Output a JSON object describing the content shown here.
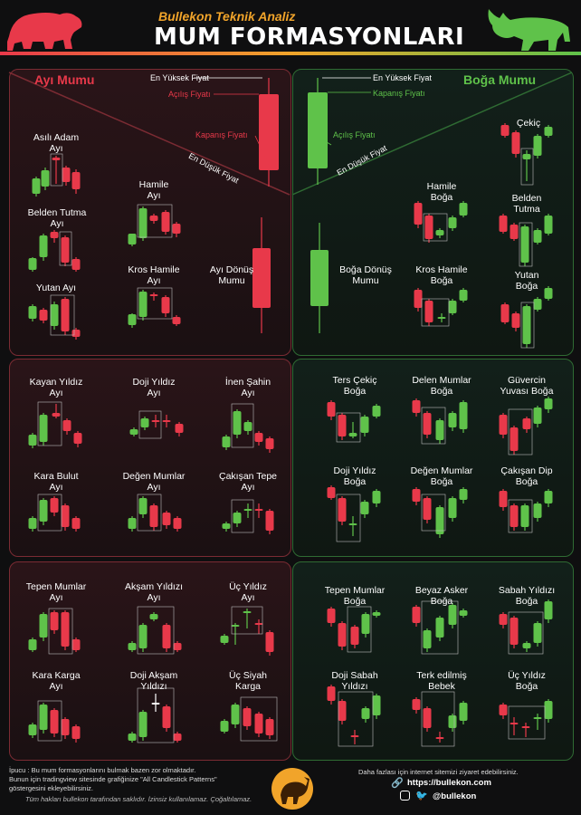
{
  "header": {
    "brand": "Bullekon Teknik Analiz",
    "title": "MUM FORMASYONLARI"
  },
  "colors": {
    "bear": "#e8394a",
    "bull": "#5fc24a",
    "accent": "#f1a42a",
    "background": "#0f0f10"
  },
  "icons": {
    "bear": "bear-silhouette-icon",
    "bull": "bull-silhouette-icon",
    "link": "link-icon",
    "instagram": "instagram-icon",
    "twitter": "twitter-icon",
    "logo": "bull-logo-icon"
  },
  "bear_section": {
    "title": "Ayı Mumu",
    "high": "En Yüksek Fiyat",
    "open": "Açılış Fiyatı",
    "close": "Kapanış Fiyatı",
    "low": "En Düşük Fiyat",
    "patterns": [
      "Asılı Adam\nAyı",
      "Hamile\nAyı",
      "Belden Tutma\nAyı",
      "Kros Hamile\nAyı",
      "Ayı Dönüş\nMumu",
      "Yutan Ayı"
    ]
  },
  "bull_section": {
    "title": "Boğa Mumu",
    "high": "En Yüksek Fiyat",
    "close": "Kapanış Fiyatı",
    "open": "Açılış Fiyatı",
    "low": "En Düşük Fiyat",
    "patterns": [
      "Çekiç",
      "Hamile\nBoğa",
      "Belden\nTutma",
      "Boğa Dönüş\nMumu",
      "Kros Hamile\nBoğa",
      "Yutan\nBoğa"
    ]
  },
  "bear_mid": [
    "Kayan Yıldız\nAyı",
    "Doji Yıldız\nAyı",
    "İnen Şahin\nAyı",
    "Kara Bulut\nAyı",
    "Değen Mumlar\nAyı",
    "Çakışan Tepe\nAyı"
  ],
  "bull_mid": [
    "Ters Çekiç\nBoğa",
    "Delen Mumlar\nBoğa",
    "Güvercin\nYuvası Boğa",
    "Doji Yıldız\nBoğa",
    "Değen Mumlar\nBoğa",
    "Çakışan Dip\nBoğa"
  ],
  "bear_bottom": [
    "Tepen Mumlar\nAyı",
    "Akşam Yıldızı\nAyı",
    "Üç Yıldız\nAyı",
    "Kara Karga\nAyı",
    "Doji Akşam\nYıldızı",
    "Üç Siyah\nKarga"
  ],
  "bull_bottom": [
    "Tepen Mumlar\nBoğa",
    "Beyaz Asker\nBoğa",
    "Sabah Yıldızı\nBoğa",
    "Doji Sabah\nYıldızı",
    "Terk edilmiş\nBebek",
    "Üç Yıldız\nBoğa"
  ],
  "footer": {
    "tip1": "İpucu : Bu mum formasyonlarını bulmak bazen zor olmaktadır.",
    "tip2": "Bunun için tradingview sitesinde grafiğinize \"All Candlestick Patterns\"",
    "tip3": "göstergesini ekleyebilirsiniz.",
    "rights": "Tüm hakları bullekon tarafından saklıdır. İzinsiz kullanılamaz. Çoğaltılamaz.",
    "info": "Daha fazlası için internet sitemizi ziyaret edebilirsiniz.",
    "url": "https://bullekon.com",
    "handle": "@bullekon"
  }
}
